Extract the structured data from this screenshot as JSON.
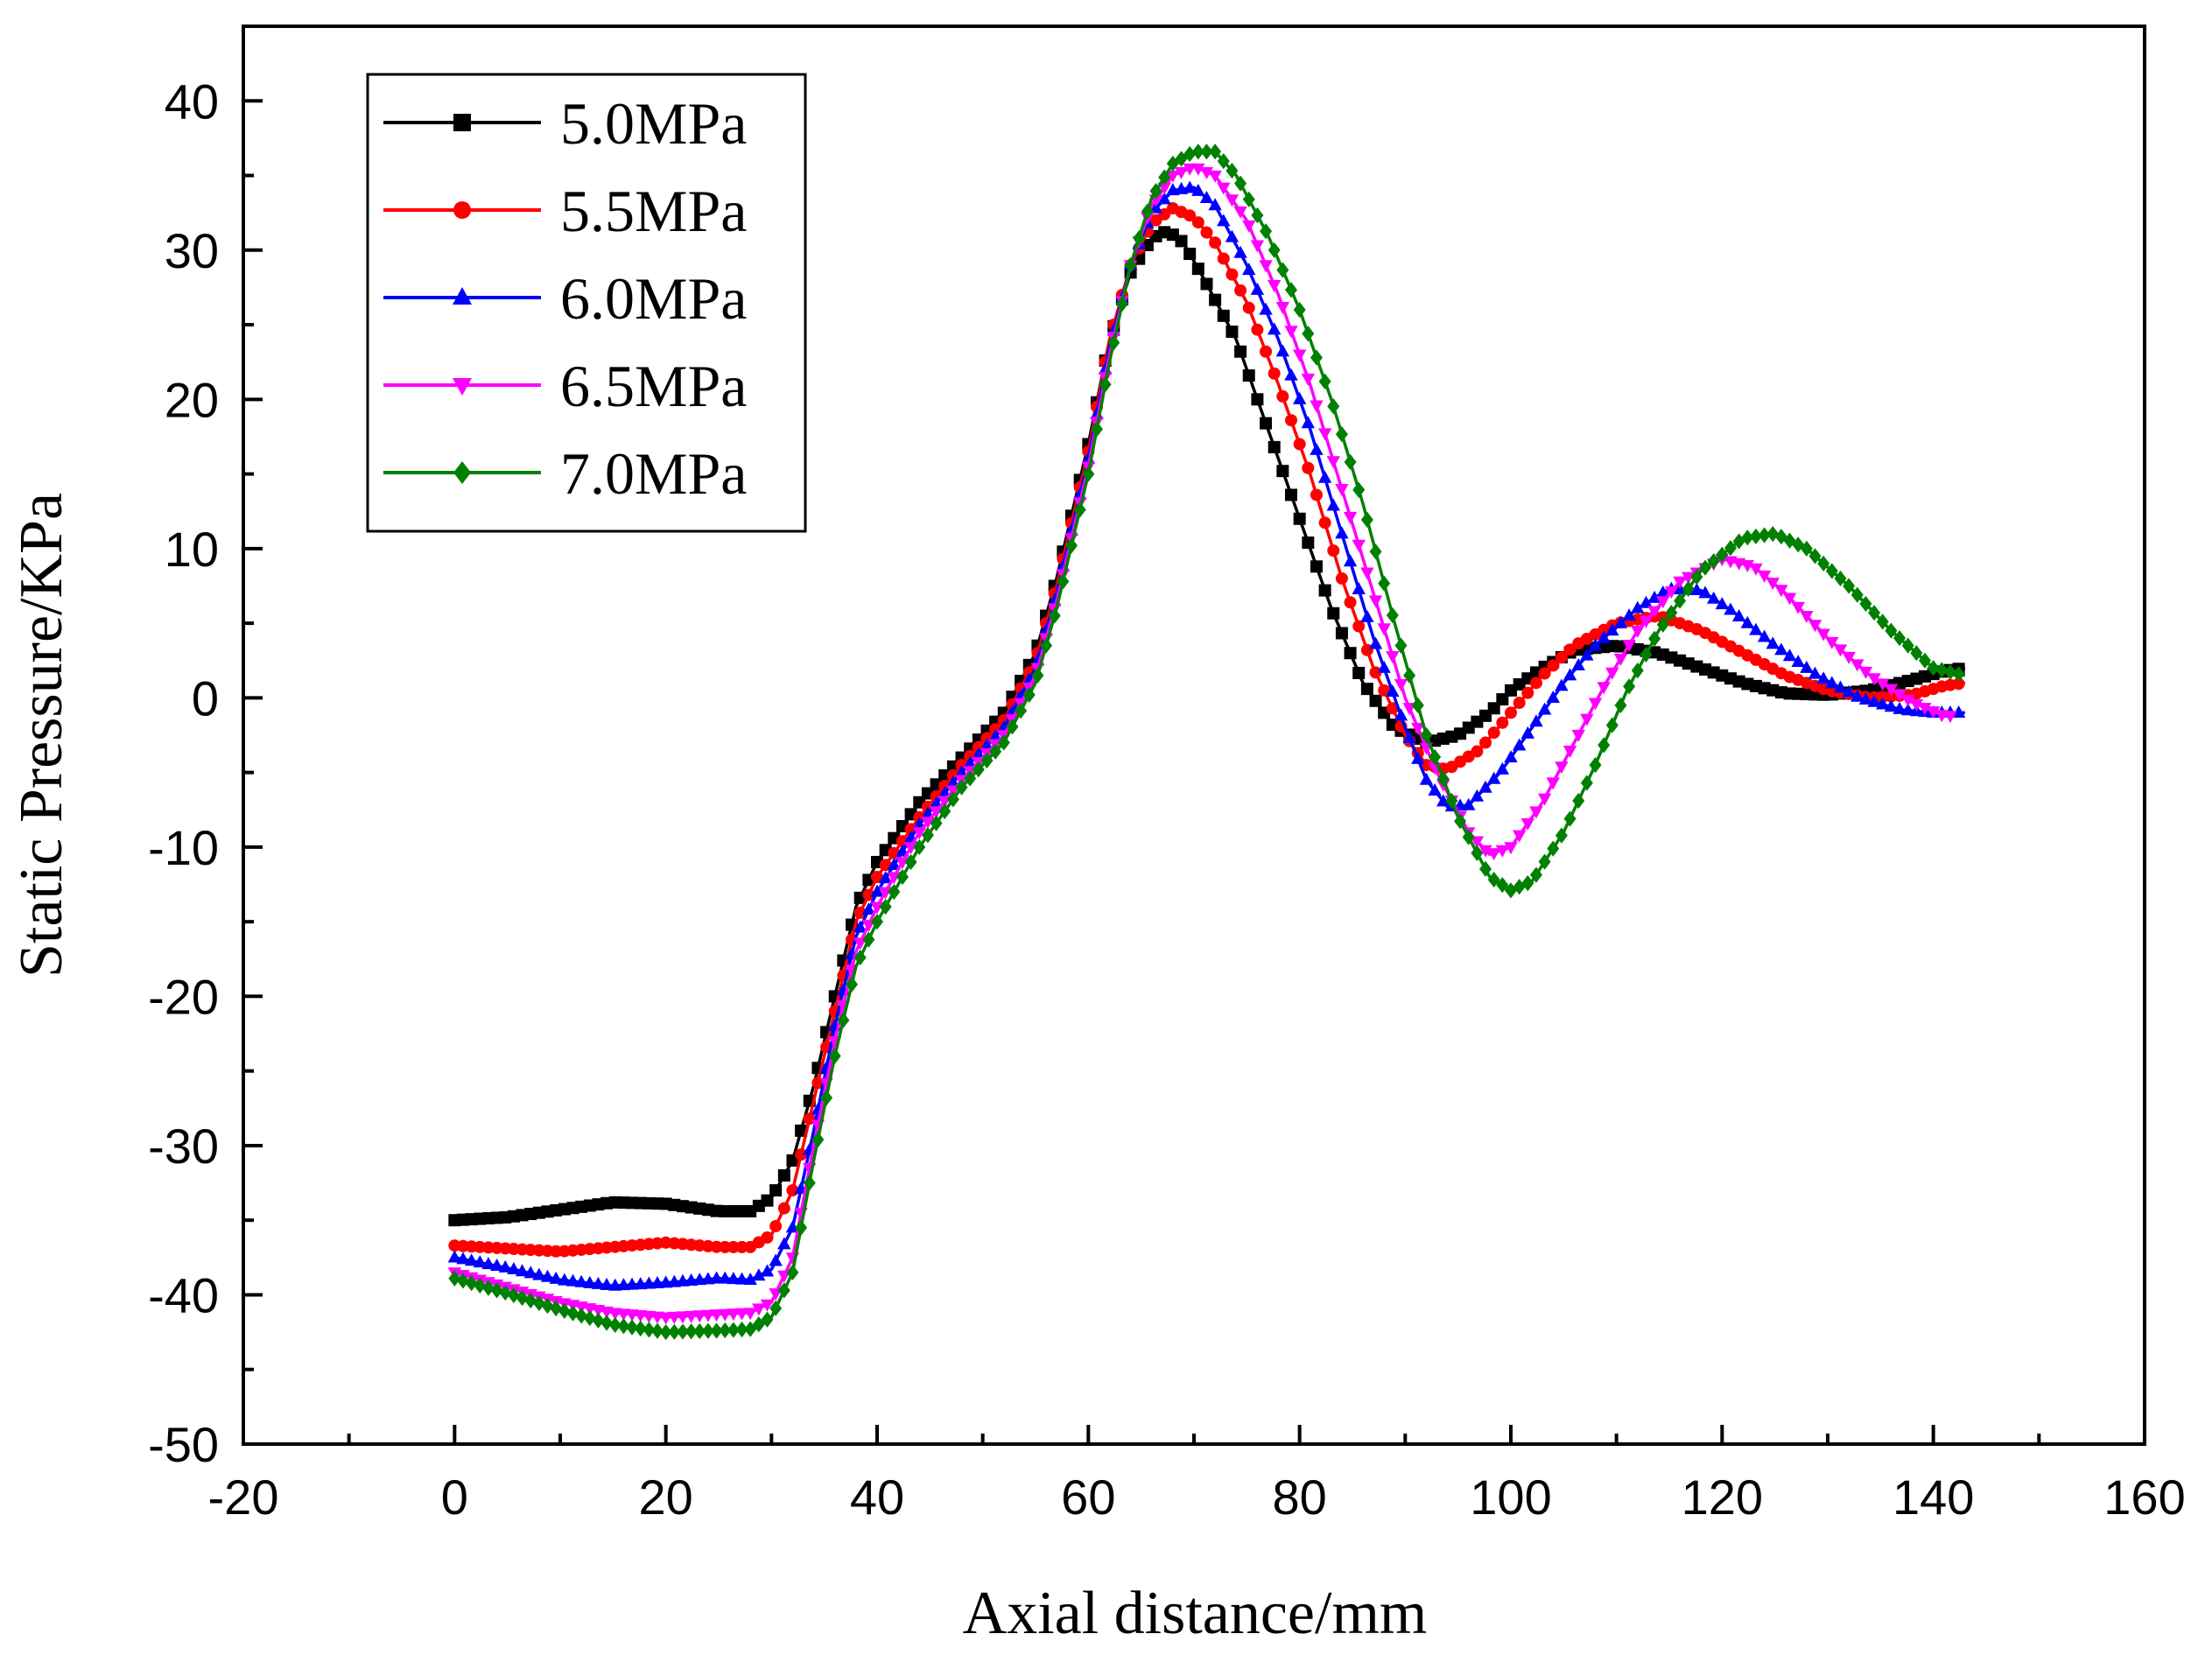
{
  "chart_data": {
    "type": "line",
    "title": "",
    "xlabel": "Axial distance/mm",
    "ylabel": "Static Pressure/KPa",
    "xlim": [
      -20,
      160
    ],
    "ylim": [
      -50,
      45
    ],
    "xticks": [
      -20,
      0,
      20,
      40,
      60,
      80,
      100,
      120,
      140,
      160
    ],
    "xtick_labels": [
      "-20",
      "0",
      "20",
      "40",
      "60",
      "80",
      "100",
      "120",
      "140",
      "160"
    ],
    "yticks": [
      -50,
      -40,
      -30,
      -20,
      -10,
      0,
      10,
      20,
      30,
      40
    ],
    "ytick_labels": [
      "-50",
      "-40",
      "-30",
      "-20",
      "-10",
      "0",
      "10",
      "20",
      "30",
      "40"
    ],
    "grid": false,
    "legend_position": "top-left",
    "series": [
      {
        "name": "5.0MPa",
        "color": "#000000",
        "marker": "square",
        "points": [
          [
            0,
            -35
          ],
          [
            5,
            -34.8
          ],
          [
            10,
            -34.3
          ],
          [
            15,
            -33.8
          ],
          [
            20,
            -33.9
          ],
          [
            25,
            -34.4
          ],
          [
            28,
            -34.4
          ],
          [
            30,
            -33.5
          ],
          [
            32,
            -31
          ],
          [
            34,
            -26
          ],
          [
            36,
            -20
          ],
          [
            38,
            -14
          ],
          [
            40,
            -11
          ],
          [
            44,
            -7
          ],
          [
            48,
            -4
          ],
          [
            52,
            -1
          ],
          [
            55,
            3
          ],
          [
            57,
            8
          ],
          [
            60,
            17
          ],
          [
            62,
            24
          ],
          [
            64,
            28.5
          ],
          [
            66,
            30.8
          ],
          [
            67.5,
            31.3
          ],
          [
            69,
            30.5
          ],
          [
            71,
            28
          ],
          [
            74,
            24
          ],
          [
            77,
            18
          ],
          [
            80,
            12
          ],
          [
            83,
            6
          ],
          [
            86,
            1
          ],
          [
            89,
            -2
          ],
          [
            92,
            -3
          ],
          [
            95,
            -2.5
          ],
          [
            98,
            -1
          ],
          [
            100,
            0.5
          ],
          [
            103,
            2
          ],
          [
            106,
            3.2
          ],
          [
            110,
            3.5
          ],
          [
            114,
            3
          ],
          [
            118,
            2
          ],
          [
            122,
            1
          ],
          [
            126,
            0.3
          ],
          [
            130,
            0.2
          ],
          [
            134,
            0.5
          ],
          [
            138,
            1.2
          ],
          [
            141,
            1.8
          ],
          [
            143,
            2
          ]
        ]
      },
      {
        "name": "5.5MPa",
        "color": "#ff0000",
        "marker": "circle",
        "points": [
          [
            0,
            -36.7
          ],
          [
            5,
            -36.9
          ],
          [
            10,
            -37.1
          ],
          [
            15,
            -36.8
          ],
          [
            20,
            -36.5
          ],
          [
            25,
            -36.8
          ],
          [
            28,
            -36.8
          ],
          [
            30,
            -36
          ],
          [
            32,
            -33
          ],
          [
            34,
            -27
          ],
          [
            36,
            -21
          ],
          [
            38,
            -15
          ],
          [
            40,
            -12
          ],
          [
            44,
            -8
          ],
          [
            48,
            -4.5
          ],
          [
            52,
            -1.5
          ],
          [
            55,
            2.5
          ],
          [
            57,
            7.5
          ],
          [
            60,
            16.5
          ],
          [
            62,
            24
          ],
          [
            64,
            29
          ],
          [
            66,
            31.8
          ],
          [
            68,
            32.8
          ],
          [
            70,
            32.2
          ],
          [
            72,
            30.5
          ],
          [
            75,
            26.5
          ],
          [
            78,
            21
          ],
          [
            81,
            15
          ],
          [
            84,
            8
          ],
          [
            87,
            2
          ],
          [
            90,
            -2.5
          ],
          [
            92,
            -4.5
          ],
          [
            94,
            -4.8
          ],
          [
            97,
            -3.5
          ],
          [
            100,
            -1
          ],
          [
            103,
            1.5
          ],
          [
            106,
            3.5
          ],
          [
            110,
            5
          ],
          [
            114,
            5.5
          ],
          [
            118,
            4.5
          ],
          [
            122,
            3
          ],
          [
            126,
            1.5
          ],
          [
            130,
            0.5
          ],
          [
            134,
            0
          ],
          [
            138,
            0.2
          ],
          [
            141,
            0.8
          ],
          [
            143,
            1
          ]
        ]
      },
      {
        "name": "6.0MPa",
        "color": "#0000ff",
        "marker": "triangle-up",
        "points": [
          [
            0,
            -37.5
          ],
          [
            5,
            -38.2
          ],
          [
            10,
            -39
          ],
          [
            15,
            -39.4
          ],
          [
            20,
            -39.2
          ],
          [
            25,
            -38.9
          ],
          [
            28,
            -39
          ],
          [
            30,
            -38.3
          ],
          [
            32,
            -35.5
          ],
          [
            34,
            -29
          ],
          [
            36,
            -22
          ],
          [
            38,
            -16
          ],
          [
            40,
            -13
          ],
          [
            44,
            -8.5
          ],
          [
            48,
            -5
          ],
          [
            52,
            -2
          ],
          [
            55,
            2
          ],
          [
            57,
            7
          ],
          [
            60,
            16
          ],
          [
            62,
            23.5
          ],
          [
            64,
            29
          ],
          [
            66,
            32.5
          ],
          [
            68,
            34
          ],
          [
            70,
            34.2
          ],
          [
            72,
            33
          ],
          [
            75,
            29
          ],
          [
            78,
            24
          ],
          [
            81,
            18
          ],
          [
            84,
            11
          ],
          [
            87,
            4
          ],
          [
            90,
            -2
          ],
          [
            92,
            -5.5
          ],
          [
            94,
            -7.3
          ],
          [
            96,
            -7.2
          ],
          [
            99,
            -5
          ],
          [
            102,
            -2
          ],
          [
            105,
            1
          ],
          [
            108,
            3.5
          ],
          [
            112,
            6
          ],
          [
            115,
            7.3
          ],
          [
            118,
            7.2
          ],
          [
            121,
            5.8
          ],
          [
            125,
            3.5
          ],
          [
            129,
            1.5
          ],
          [
            133,
            0
          ],
          [
            137,
            -0.8
          ],
          [
            140,
            -1
          ],
          [
            143,
            -1
          ]
        ]
      },
      {
        "name": "6.5MPa",
        "color": "#ff00ff",
        "marker": "triangle-down",
        "points": [
          [
            0,
            -38.5
          ],
          [
            5,
            -39.5
          ],
          [
            10,
            -40.5
          ],
          [
            15,
            -41.2
          ],
          [
            20,
            -41.5
          ],
          [
            25,
            -41.3
          ],
          [
            28,
            -41.2
          ],
          [
            30,
            -40.5
          ],
          [
            32,
            -37.5
          ],
          [
            34,
            -30
          ],
          [
            36,
            -23
          ],
          [
            38,
            -17
          ],
          [
            40,
            -14
          ],
          [
            44,
            -9
          ],
          [
            48,
            -5.5
          ],
          [
            52,
            -2.5
          ],
          [
            55,
            1.5
          ],
          [
            57,
            6.5
          ],
          [
            60,
            15.5
          ],
          [
            62,
            23
          ],
          [
            64,
            29
          ],
          [
            66,
            33
          ],
          [
            68,
            35
          ],
          [
            70,
            35.6
          ],
          [
            72,
            35
          ],
          [
            75,
            32
          ],
          [
            78,
            27
          ],
          [
            81,
            21
          ],
          [
            84,
            14
          ],
          [
            87,
            7
          ],
          [
            90,
            0
          ],
          [
            93,
            -5
          ],
          [
            96,
            -9
          ],
          [
            98,
            -10.5
          ],
          [
            100,
            -10
          ],
          [
            103,
            -7
          ],
          [
            106,
            -3
          ],
          [
            109,
            1
          ],
          [
            112,
            4.5
          ],
          [
            116,
            7.8
          ],
          [
            120,
            9.3
          ],
          [
            123,
            8.8
          ],
          [
            126,
            7
          ],
          [
            130,
            4
          ],
          [
            134,
            1.5
          ],
          [
            138,
            -0.3
          ],
          [
            141,
            -1.2
          ],
          [
            142,
            -1.2
          ]
        ]
      },
      {
        "name": "7.0MPa",
        "color": "#008000",
        "marker": "diamond",
        "points": [
          [
            0,
            -38.9
          ],
          [
            5,
            -39.9
          ],
          [
            10,
            -41
          ],
          [
            15,
            -42
          ],
          [
            20,
            -42.5
          ],
          [
            25,
            -42.4
          ],
          [
            28,
            -42.3
          ],
          [
            30,
            -41.5
          ],
          [
            32,
            -38.5
          ],
          [
            34,
            -31
          ],
          [
            36,
            -24
          ],
          [
            38,
            -18
          ],
          [
            40,
            -15
          ],
          [
            44,
            -10
          ],
          [
            48,
            -6
          ],
          [
            52,
            -3
          ],
          [
            55,
            1
          ],
          [
            57,
            6
          ],
          [
            60,
            15
          ],
          [
            62,
            22.5
          ],
          [
            64,
            29
          ],
          [
            66,
            33.5
          ],
          [
            68,
            35.8
          ],
          [
            70,
            36.6
          ],
          [
            72,
            36.6
          ],
          [
            74,
            35
          ],
          [
            77,
            31
          ],
          [
            80,
            26
          ],
          [
            83,
            20
          ],
          [
            86,
            13
          ],
          [
            89,
            5
          ],
          [
            92,
            -2.5
          ],
          [
            95,
            -8
          ],
          [
            98,
            -12
          ],
          [
            100,
            -12.9
          ],
          [
            102,
            -12.3
          ],
          [
            105,
            -9
          ],
          [
            108,
            -4.5
          ],
          [
            111,
            0.5
          ],
          [
            114,
            4.5
          ],
          [
            118,
            8.5
          ],
          [
            122,
            10.7
          ],
          [
            125,
            11
          ],
          [
            128,
            10
          ],
          [
            132,
            7.5
          ],
          [
            136,
            4.5
          ],
          [
            140,
            2
          ],
          [
            143,
            1.5
          ]
        ]
      }
    ]
  }
}
